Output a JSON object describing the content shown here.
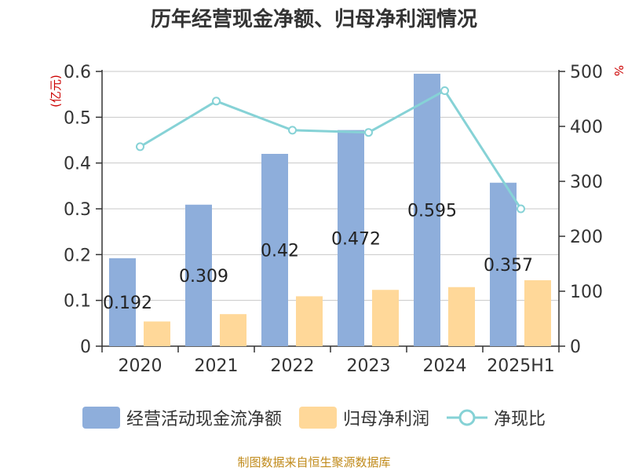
{
  "title": "历年经营现金净额、归母净利润情况",
  "footer": "制图数据来自恒生聚源数据库",
  "colors": {
    "cash_flow": "#8eaedb",
    "net_profit": "#ffd899",
    "ratio_line": "#86d2d6",
    "unit_left": "#cc0000",
    "unit_right": "#cc0000"
  },
  "chart_data": {
    "type": "bar",
    "categories": [
      "2020",
      "2021",
      "2022",
      "2023",
      "2024",
      "2025H1"
    ],
    "ylabel_left": "(亿元)",
    "ylabel_right": "%",
    "ylim_left": [
      0,
      0.6
    ],
    "ylim_right": [
      0,
      500
    ],
    "yticks_left": [
      "0",
      "0.1",
      "0.2",
      "0.3",
      "0.4",
      "0.5",
      "0.6"
    ],
    "yticks_right": [
      "0",
      "100",
      "200",
      "300",
      "400",
      "500"
    ],
    "series": [
      {
        "name": "经营活动现金流净额",
        "axis": "left",
        "kind": "bar",
        "values": [
          0.192,
          0.309,
          0.42,
          0.472,
          0.595,
          0.357
        ],
        "labels": [
          "0.192",
          "0.309",
          "0.42",
          "0.472",
          "0.595",
          "0.357"
        ]
      },
      {
        "name": "归母净利润",
        "axis": "left",
        "kind": "bar",
        "values": [
          0.054,
          0.07,
          0.109,
          0.123,
          0.129,
          0.144
        ]
      },
      {
        "name": "净现比",
        "axis": "right",
        "kind": "line",
        "values": [
          363,
          446,
          393,
          389,
          465,
          250
        ]
      }
    ],
    "grid": true,
    "legend_position": "bottom"
  }
}
